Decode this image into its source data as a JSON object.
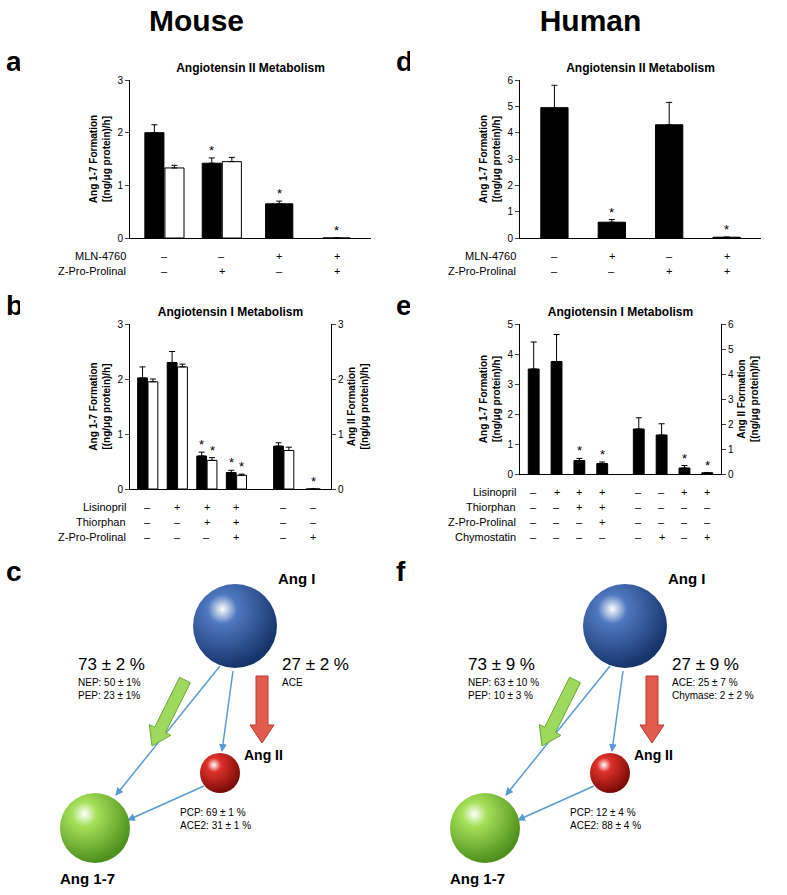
{
  "headers": [
    "Mouse",
    "Human"
  ],
  "chart_data": [
    {
      "type": "bar",
      "panel": "a",
      "title": "Angiotensin II Metabolism",
      "y_label": [
        "Ang 1-7 Formation",
        "[(ng/μg protein)/h]"
      ],
      "categories": [
        null,
        null,
        null,
        null
      ],
      "conditions": [
        {
          "name": "MLN-4760",
          "signs": [
            "–",
            "–",
            "+",
            "+"
          ]
        },
        {
          "name": "Z-Pro-Prolinal",
          "signs": [
            "–",
            "+",
            "–",
            "+"
          ]
        }
      ],
      "ylim": [
        0,
        3
      ],
      "yticks": [
        0,
        1,
        2,
        3
      ],
      "grid": false,
      "series": [
        {
          "color": "#000000",
          "values": [
            2.0,
            1.42,
            0.65,
            0
          ],
          "errors": [
            0.15,
            0.1,
            0.05,
            null
          ],
          "significance": [
            null,
            "*",
            "*",
            "*"
          ]
        },
        {
          "color": "#ffffff",
          "values": [
            1.33,
            1.45,
            null,
            null
          ],
          "errors": [
            0.05,
            0.08,
            null,
            null
          ],
          "significance": [
            null,
            null,
            null,
            null
          ]
        }
      ]
    },
    {
      "type": "bar",
      "panel": "b",
      "title": "Angiotensin I Metabolism",
      "y_label": [
        "Ang 1-7 Formation",
        "[(ng/μg protein)/h]"
      ],
      "y2_label": [
        "Ang II Formation",
        "[(ng/μg protein)/h]"
      ],
      "categories": [
        null,
        null,
        null,
        null,
        null,
        null
      ],
      "conditions": [
        {
          "name": "Lisinopril",
          "signs": [
            "–",
            "+",
            "+",
            "+",
            "–",
            "–"
          ]
        },
        {
          "name": "Thiorphan",
          "signs": [
            "–",
            "–",
            "+",
            "+",
            "–",
            "–"
          ]
        },
        {
          "name": "Z-Pro-Prolinal",
          "signs": [
            "–",
            "–",
            "–",
            "+",
            "–",
            "+"
          ]
        }
      ],
      "ylim": [
        0,
        3
      ],
      "yticks": [
        0,
        1,
        2,
        3
      ],
      "y2lim": [
        0,
        3
      ],
      "y2ticks": [
        0,
        1,
        2,
        3
      ],
      "grid": false,
      "series": [
        {
          "color": "#000000",
          "values": [
            2.02,
            2.3,
            0.6,
            0.3,
            null,
            null
          ],
          "errors": [
            0.2,
            0.2,
            0.07,
            0.04,
            null,
            null
          ],
          "significance": [
            null,
            null,
            "*",
            "*",
            null,
            null
          ]
        },
        {
          "color": "#ffffff",
          "values": [
            1.95,
            2.22,
            0.52,
            0.25,
            null,
            null
          ],
          "errors": [
            0.05,
            0.05,
            0.05,
            0.02,
            null,
            null
          ],
          "significance": [
            null,
            null,
            "*",
            "*",
            null,
            null
          ]
        },
        {
          "color": "#000000",
          "axis": "y2",
          "values": [
            null,
            null,
            null,
            null,
            0.78,
            0
          ],
          "errors": [
            null,
            null,
            null,
            null,
            0.06,
            null
          ],
          "significance": [
            null,
            null,
            null,
            null,
            null,
            "*"
          ]
        },
        {
          "color": "#ffffff",
          "axis": "y2",
          "values": [
            null,
            null,
            null,
            null,
            0.7,
            null
          ],
          "errors": [
            null,
            null,
            null,
            null,
            0.06,
            null
          ],
          "significance": [
            null,
            null,
            null,
            null,
            null,
            null
          ]
        }
      ]
    },
    {
      "type": "bar",
      "panel": "d",
      "title": "Angiotensin II Metabolism",
      "y_label": [
        "Ang 1-7 Formation",
        "[(ng/μg protein)/h]"
      ],
      "categories": [
        null,
        null,
        null,
        null
      ],
      "conditions": [
        {
          "name": "MLN-4760",
          "signs": [
            "–",
            "+",
            "–",
            "+"
          ]
        },
        {
          "name": "Z-Pro-Prolinal",
          "signs": [
            "–",
            "–",
            "+",
            "+"
          ]
        }
      ],
      "ylim": [
        0,
        6
      ],
      "yticks": [
        0,
        1,
        2,
        3,
        4,
        5,
        6
      ],
      "grid": false,
      "series": [
        {
          "color": "#000000",
          "values": [
            4.95,
            0.6,
            4.3,
            0.03
          ],
          "errors": [
            0.85,
            0.1,
            0.85,
            null
          ],
          "significance": [
            null,
            "*",
            null,
            "*"
          ]
        }
      ]
    },
    {
      "type": "bar",
      "panel": "e",
      "title": "Angiotensin I Metabolism",
      "y_label": [
        "Ang 1-7 Formation",
        "[(ng/μg protein)/h]"
      ],
      "y2_label": [
        "Ang II Formation",
        "[(ng/μg protein)/h]"
      ],
      "categories": [
        null,
        null,
        null,
        null,
        null,
        null,
        null,
        null
      ],
      "conditions": [
        {
          "name": "Lisinopril",
          "signs": [
            "–",
            "+",
            "+",
            "+",
            "–",
            "–",
            "+",
            "+"
          ]
        },
        {
          "name": "Thiorphan",
          "signs": [
            "–",
            "–",
            "+",
            "+",
            "–",
            "–",
            "–",
            "–"
          ]
        },
        {
          "name": "Z-Pro-Prolinal",
          "signs": [
            "–",
            "–",
            "–",
            "+",
            "–",
            "–",
            "–",
            "–"
          ]
        },
        {
          "name": "Chymostatin",
          "signs": [
            "–",
            "–",
            "–",
            "–",
            "–",
            "+",
            "–",
            "+"
          ]
        }
      ],
      "ylim": [
        0,
        5
      ],
      "yticks": [
        0,
        1,
        2,
        3,
        4,
        5
      ],
      "y2lim": [
        0,
        6
      ],
      "y2ticks": [
        0,
        1,
        2,
        3,
        4,
        5,
        6
      ],
      "grid": false,
      "series": [
        {
          "color": "#000000",
          "values": [
            3.5,
            3.75,
            0.45,
            0.35,
            null,
            null,
            null,
            null
          ],
          "errors": [
            0.9,
            0.9,
            0.07,
            0.05,
            null,
            null,
            null,
            null
          ],
          "significance": [
            null,
            null,
            "*",
            "*",
            null,
            null,
            null,
            null
          ]
        },
        {
          "color": "#000000",
          "axis": "y2",
          "values": [
            null,
            null,
            null,
            null,
            1.8,
            1.56,
            0.24,
            0.05
          ],
          "errors": [
            null,
            null,
            null,
            null,
            0.45,
            0.45,
            0.1,
            null
          ],
          "significance": [
            null,
            null,
            null,
            null,
            null,
            null,
            "*",
            "*"
          ]
        }
      ]
    }
  ],
  "diagrams": [
    {
      "panel": "c",
      "nodes": {
        "source": "Ang I",
        "intermediate": "Ang II",
        "product": "Ang 1-7"
      },
      "direct": {
        "percent": "73 ± 2 %",
        "enzymes": [
          "NEP: 50 ± 1%",
          "PEP: 23 ± 1%"
        ]
      },
      "via_intermediate": {
        "percent": "27 ± 2 %",
        "enzymes": [
          "ACE"
        ]
      },
      "intermediate_to_product": {
        "enzymes": [
          "PCP: 69 ± 1 %",
          "ACE2: 31 ± 1 %"
        ]
      }
    },
    {
      "panel": "f",
      "nodes": {
        "source": "Ang I",
        "intermediate": "Ang II",
        "product": "Ang 1-7"
      },
      "direct": {
        "percent": "73 ± 9 %",
        "enzymes": [
          "NEP: 63 ± 10 %",
          "PEP: 10 ± 3 %"
        ]
      },
      "via_intermediate": {
        "percent": "27 ± 9 %",
        "enzymes": [
          "ACE: 25 ± 7 %",
          "Chymase: 2 ± 2 %"
        ]
      },
      "intermediate_to_product": {
        "enzymes": [
          "PCP: 12 ± 4 %",
          "ACE2: 88 ± 4 %"
        ]
      }
    }
  ]
}
